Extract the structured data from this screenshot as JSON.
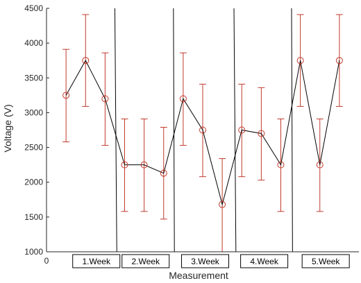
{
  "chart_data": {
    "type": "line",
    "xlabel": "Measurement",
    "ylabel": "Voltage (V)",
    "ylim": [
      1000,
      4500
    ],
    "xlim": [
      0,
      16
    ],
    "yticks": [
      1000,
      1500,
      2000,
      2500,
      3000,
      3500,
      4000,
      4500
    ],
    "xtick_labels": [
      "0"
    ],
    "grid": false,
    "x": [
      1,
      2,
      3,
      4,
      5,
      6,
      7,
      8,
      9,
      10,
      11,
      12,
      13,
      14,
      15
    ],
    "series": [
      {
        "values": [
          3250,
          3750,
          3200,
          2250,
          2250,
          2130,
          3200,
          2750,
          1680,
          2750,
          2700,
          2250,
          3750,
          2250,
          3750
        ],
        "error_low": [
          2580,
          3090,
          2530,
          1580,
          1580,
          1470,
          2530,
          2080,
          1000,
          2080,
          2030,
          1580,
          3090,
          1580,
          3090
        ],
        "error_high": [
          3910,
          4410,
          3860,
          2910,
          2910,
          2790,
          3860,
          3410,
          2340,
          3410,
          3360,
          2910,
          4410,
          2910,
          4410
        ],
        "line_color": "#000000",
        "marker_color": "#c0392b",
        "error_color": "#c0392b"
      }
    ],
    "week_labels": [
      "1.Week",
      "2.Week",
      "3.Week",
      "4.Week",
      "5.Week"
    ],
    "week_separators": [
      {
        "x_top": 3.5,
        "x_bottom": 3.6
      },
      {
        "x_top": 6.5,
        "x_bottom": 6.55
      },
      {
        "x_top": 9.6,
        "x_bottom": 9.7
      },
      {
        "x_top": 12.55,
        "x_bottom": 12.6
      }
    ]
  }
}
